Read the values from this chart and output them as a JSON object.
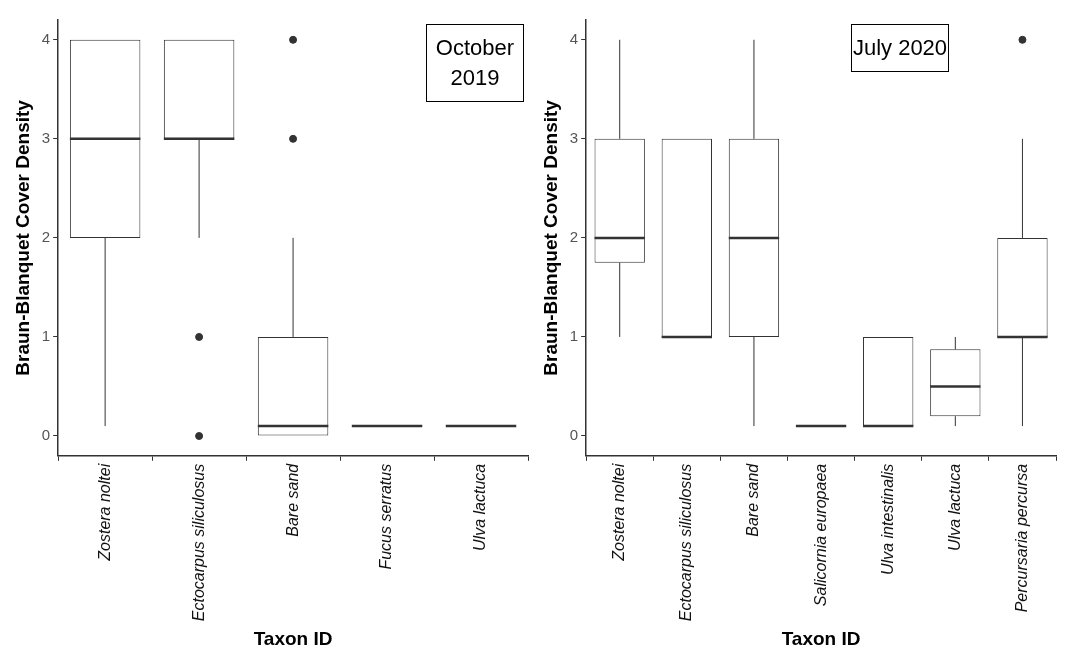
{
  "chart_data": [
    {
      "type": "box",
      "xlabel": "Taxon ID",
      "ylabel": "Braun-Blanquet Cover Density",
      "annotations": [
        "October 2019"
      ],
      "categories": [
        "Zostera noltei",
        "Ectocarpus siliculosus",
        "Bare sand",
        "Fucus serratus",
        "Ulva lactuca"
      ],
      "boxes": [
        {
          "low": 0.1,
          "q1": 2,
          "median": 3,
          "q3": 4,
          "high": 4
        },
        {
          "low": 2,
          "q1": 3,
          "median": 3,
          "q3": 4,
          "high": 4,
          "outliers": [
            1,
            0
          ]
        },
        {
          "low": 0,
          "q1": 0,
          "median": 0.1,
          "q3": 1,
          "high": 2,
          "outliers": [
            3,
            4
          ]
        },
        {
          "low": 0.1,
          "q1": 0.1,
          "median": 0.1,
          "q3": 0.1,
          "high": 0.1
        },
        {
          "low": 0.1,
          "q1": 0.1,
          "median": 0.1,
          "q3": 0.1,
          "high": 0.1
        }
      ],
      "ylim": [
        -0.2,
        4.2
      ],
      "yticks": [
        0,
        1,
        2,
        3,
        4
      ],
      "grid": false
    },
    {
      "type": "box",
      "xlabel": "Taxon ID",
      "ylabel": "Braun-Blanquet Cover Density",
      "annotations": [
        "July 2020"
      ],
      "categories": [
        "Zostera noltei",
        "Ectocarpus siliculosus",
        "Bare sand",
        "Salicornia europaea",
        "Ulva intestinalis",
        "Ulva lactuca",
        "Percursaria percursa"
      ],
      "boxes": [
        {
          "low": 1,
          "q1": 1.75,
          "median": 2,
          "q3": 3,
          "high": 4
        },
        {
          "low": 1,
          "q1": 1,
          "median": 1,
          "q3": 3,
          "high": 3
        },
        {
          "low": 0.1,
          "q1": 1,
          "median": 2,
          "q3": 3,
          "high": 4
        },
        {
          "low": 0.1,
          "q1": 0.1,
          "median": 0.1,
          "q3": 0.1,
          "high": 0.1
        },
        {
          "low": 0.1,
          "q1": 0.1,
          "median": 0.1,
          "q3": 1,
          "high": 1
        },
        {
          "low": 0.1,
          "q1": 0.2,
          "median": 0.5,
          "q3": 0.875,
          "high": 1
        },
        {
          "low": 0.1,
          "q1": 1,
          "median": 1,
          "q3": 2,
          "high": 3,
          "outliers": [
            4
          ]
        }
      ],
      "ylim": [
        -0.2,
        4.2
      ],
      "yticks": [
        0,
        1,
        2,
        3,
        4
      ],
      "grid": false
    }
  ]
}
